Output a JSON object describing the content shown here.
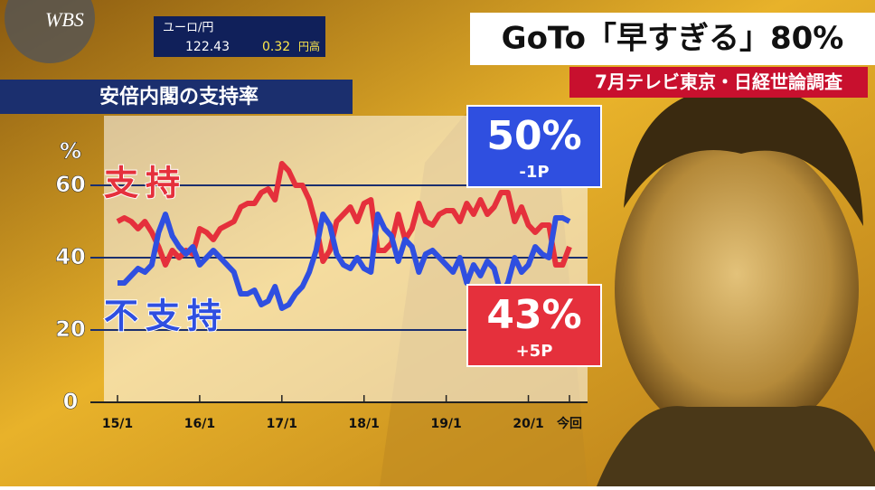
{
  "channel": "WBS",
  "ticker": {
    "pair": "ユーロ/円",
    "rate": "122.43",
    "change": "0.32",
    "direction": "円高"
  },
  "headline": "GoTo「早すぎる」80%",
  "source": "7月テレビ東京・日経世論調査",
  "chart_data": {
    "type": "line",
    "title": "安倍内閣の支持率",
    "y_unit": "%",
    "categories": [
      "15/1",
      null,
      null,
      null,
      null,
      null,
      null,
      null,
      null,
      null,
      null,
      null,
      "16/1",
      null,
      null,
      null,
      null,
      null,
      null,
      null,
      null,
      null,
      null,
      null,
      "17/1",
      null,
      null,
      null,
      null,
      null,
      null,
      null,
      null,
      null,
      null,
      null,
      "18/1",
      null,
      null,
      null,
      null,
      null,
      null,
      null,
      null,
      null,
      null,
      null,
      "19/1",
      null,
      null,
      null,
      null,
      null,
      null,
      null,
      null,
      null,
      null,
      null,
      "20/1",
      null,
      null,
      null,
      null,
      null,
      "今回"
    ],
    "ylim": [
      0,
      80
    ],
    "yticks": [
      0,
      20,
      40,
      60
    ],
    "grid": true,
    "series": [
      {
        "name": "支持",
        "color": "#e5303c",
        "values": [
          50,
          51,
          50,
          48,
          50,
          47,
          43,
          38,
          42,
          40,
          42,
          41,
          48,
          47,
          45,
          48,
          49,
          50,
          54,
          55,
          55,
          58,
          59,
          56,
          66,
          64,
          60,
          60,
          56,
          49,
          39,
          42,
          50,
          52,
          54,
          50,
          55,
          56,
          42,
          42,
          44,
          52,
          45,
          48,
          55,
          50,
          49,
          52,
          53,
          53,
          50,
          55,
          52,
          56,
          52,
          54,
          58,
          58,
          50,
          54,
          49,
          47,
          49,
          49,
          38,
          38,
          43
        ],
        "value_labels": [
          null,
          null,
          null,
          null,
          null,
          null,
          null,
          null,
          null,
          null,
          null,
          null,
          null,
          null,
          null,
          null,
          null,
          null,
          null,
          null,
          null,
          null,
          null,
          null,
          null,
          null,
          null,
          null,
          null,
          null,
          null,
          null,
          null,
          null,
          null,
          null,
          null,
          null,
          null,
          null,
          null,
          null,
          null,
          null,
          null,
          null,
          null,
          null,
          null,
          null,
          null,
          null,
          null,
          null,
          null,
          null,
          null,
          null,
          null,
          null,
          null,
          null,
          null,
          null,
          null,
          null,
          "43%"
        ],
        "change": "+5P"
      },
      {
        "name": "不支持",
        "color": "#2f4fe0",
        "values": [
          33,
          33,
          35,
          37,
          36,
          38,
          47,
          52,
          46,
          43,
          41,
          43,
          38,
          40,
          42,
          40,
          38,
          36,
          30,
          30,
          31,
          27,
          28,
          32,
          26,
          27,
          30,
          32,
          36,
          42,
          52,
          49,
          41,
          38,
          37,
          40,
          37,
          36,
          52,
          48,
          46,
          39,
          45,
          43,
          36,
          41,
          42,
          40,
          38,
          36,
          40,
          33,
          38,
          35,
          39,
          37,
          30,
          33,
          40,
          36,
          38,
          43,
          41,
          40,
          51,
          51,
          50
        ],
        "value_labels": [
          null,
          null,
          null,
          null,
          null,
          null,
          null,
          null,
          null,
          null,
          null,
          null,
          null,
          null,
          null,
          null,
          null,
          null,
          null,
          null,
          null,
          null,
          null,
          null,
          null,
          null,
          null,
          null,
          null,
          null,
          null,
          null,
          null,
          null,
          null,
          null,
          null,
          null,
          null,
          null,
          null,
          null,
          null,
          null,
          null,
          null,
          null,
          null,
          null,
          null,
          null,
          null,
          null,
          null,
          null,
          null,
          null,
          null,
          null,
          null,
          null,
          null,
          null,
          null,
          null,
          null,
          "50%"
        ],
        "change": "-1P"
      }
    ]
  }
}
